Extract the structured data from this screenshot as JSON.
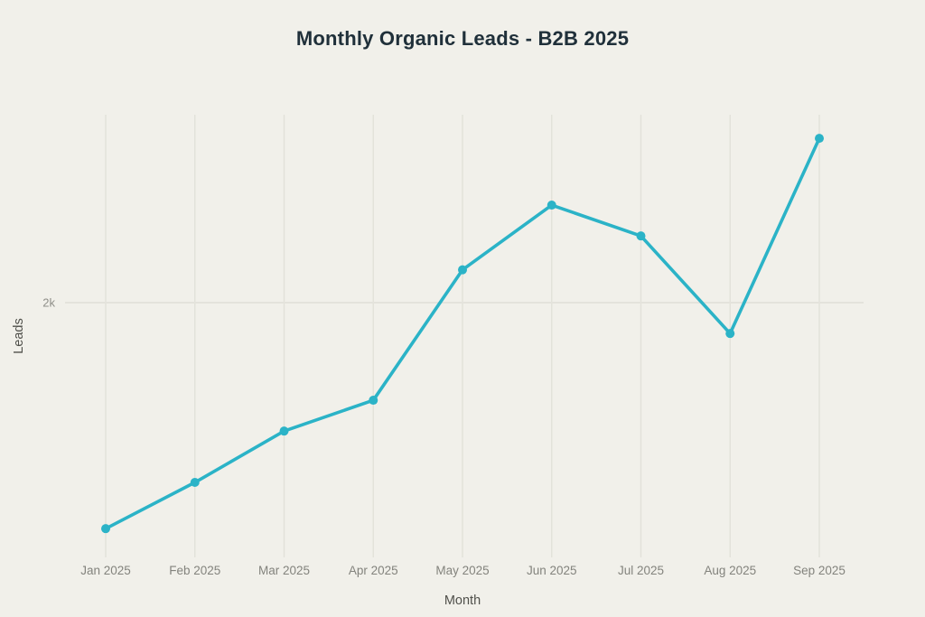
{
  "chart": {
    "title": "Monthly Organic Leads - B2B 2025"
  },
  "chart_data": {
    "type": "line",
    "title": "Monthly Organic Leads - B2B 2025",
    "xlabel": "Month",
    "ylabel": "Leads",
    "categories": [
      "Jan 2025",
      "Feb 2025",
      "Mar 2025",
      "Apr 2025",
      "May 2025",
      "Jun 2025",
      "Jul 2025",
      "Aug 2025",
      "Sep 2025"
    ],
    "series": [
      {
        "name": "Organic Leads",
        "values": [
          900,
          1125,
          1375,
          1525,
          2160,
          2475,
          2325,
          1850,
          2800
        ]
      }
    ],
    "ylim": [
      760,
      2915
    ],
    "yticks": [
      {
        "value": 2000,
        "label": "2k"
      }
    ],
    "grid": "vertical gridline per month, single horizontal gridline at 2k",
    "legend": "none",
    "marker": "circle"
  },
  "colors": {
    "background": "#f1f0ea",
    "line": "#2bb3c7",
    "title_text": "#20303a",
    "axis_title_text": "#50504b",
    "tick_label_text": "#83837d",
    "ytick_label_text": "#8f8f89",
    "grid_vertical": "#e2e1da",
    "grid_horizontal": "#e4e3dc"
  }
}
